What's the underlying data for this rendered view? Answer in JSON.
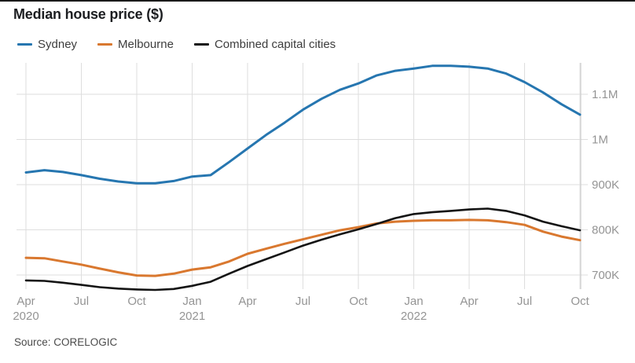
{
  "title": "Median house price ($)",
  "source": "Source: CORELOGIC",
  "colors": {
    "sydney": "#2676b0",
    "melbourne": "#d9782f",
    "combined": "#141414",
    "grid": "#dedede",
    "axis_line": "#c9c9c9",
    "tick_label": "#949494",
    "top_rule": "#1a1a1a"
  },
  "chart_data": {
    "type": "line",
    "title": "Median house price ($)",
    "unit_note": "values in thousands of dollars as read from axis (700K - 1.1M)",
    "x": [
      "Apr 2020",
      "May 2020",
      "Jun 2020",
      "Jul 2020",
      "Aug 2020",
      "Sep 2020",
      "Oct 2020",
      "Nov 2020",
      "Dec 2020",
      "Jan 2021",
      "Feb 2021",
      "Mar 2021",
      "Apr 2021",
      "May 2021",
      "Jun 2021",
      "Jul 2021",
      "Aug 2021",
      "Sep 2021",
      "Oct 2021",
      "Nov 2021",
      "Dec 2021",
      "Jan 2022",
      "Feb 2022",
      "Mar 2022",
      "Apr 2022",
      "May 2022",
      "Jun 2022",
      "Jul 2022",
      "Aug 2022",
      "Sep 2022",
      "Oct 2022"
    ],
    "x_tick_indices": [
      0,
      3,
      6,
      9,
      12,
      15,
      18,
      21,
      24,
      27,
      30
    ],
    "x_tick_labels": [
      "Apr",
      "Jul",
      "Oct",
      "Jan",
      "Apr",
      "Jul",
      "Oct",
      "Jan",
      "Apr",
      "Jul",
      "Oct"
    ],
    "x_year_ticks": [
      {
        "index": 0,
        "label": "2020"
      },
      {
        "index": 9,
        "label": "2021"
      },
      {
        "index": 21,
        "label": "2022"
      }
    ],
    "y_ticks": [
      {
        "value": 700,
        "label": "700K"
      },
      {
        "value": 800,
        "label": "800K"
      },
      {
        "value": 900,
        "label": "900K"
      },
      {
        "value": 1000,
        "label": "1M"
      },
      {
        "value": 1100,
        "label": "1.1M"
      }
    ],
    "ylim": [
      665,
      1170
    ],
    "grid": true,
    "legend_position": "top-left",
    "series": [
      {
        "name": "Sydney",
        "color": "#2676b0",
        "values": [
          927,
          932,
          928,
          921,
          913,
          907,
          903,
          903,
          908,
          918,
          921,
          950,
          980,
          1010,
          1037,
          1066,
          1090,
          1110,
          1124,
          1142,
          1152,
          1157,
          1163,
          1163,
          1161,
          1157,
          1146,
          1127,
          1104,
          1078,
          1055
        ]
      },
      {
        "name": "Melbourne",
        "color": "#d9782f",
        "values": [
          738,
          737,
          730,
          723,
          714,
          706,
          699,
          698,
          703,
          712,
          717,
          730,
          747,
          758,
          769,
          779,
          789,
          799,
          806,
          814,
          818,
          820,
          821,
          821,
          822,
          821,
          817,
          811,
          796,
          785,
          777
        ]
      },
      {
        "name": "Combined capital cities",
        "color": "#141414",
        "values": [
          688,
          687,
          683,
          678,
          673,
          670,
          668,
          667,
          669,
          676,
          685,
          703,
          720,
          735,
          750,
          765,
          778,
          790,
          801,
          813,
          826,
          835,
          839,
          842,
          845,
          847,
          842,
          832,
          818,
          808,
          799
        ]
      }
    ]
  }
}
